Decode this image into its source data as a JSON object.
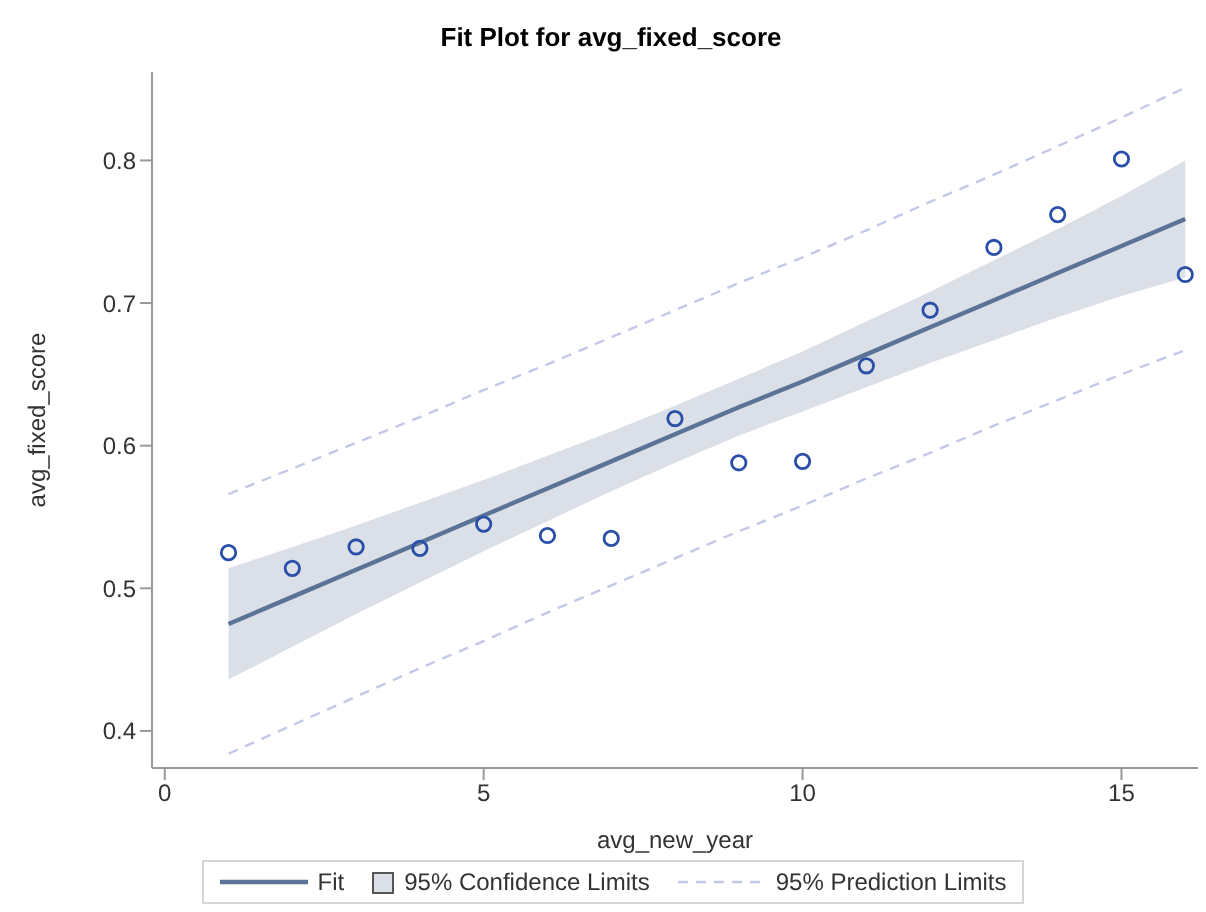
{
  "chart_data": {
    "type": "scatter",
    "title": "Fit Plot for avg_fixed_score",
    "xlabel": "avg_new_year",
    "ylabel": "avg_fixed_score",
    "annotations": [
      "95% Confidence Limits"
    ],
    "x": [
      1,
      2,
      3,
      4,
      5,
      6,
      7,
      8,
      9,
      10,
      11,
      12,
      13,
      14,
      15,
      16
    ],
    "series": [
      {
        "type": "line",
        "name": "Fit",
        "color": "#5b7397",
        "line_style": "solid",
        "values": [
          0.475,
          0.494,
          0.513,
          0.532,
          0.551,
          0.57,
          0.589,
          0.608,
          0.627,
          0.645,
          0.664,
          0.683,
          0.702,
          0.721,
          0.74,
          0.759
        ],
        "lower": [
          0.436,
          0.459,
          0.482,
          0.504,
          0.526,
          0.547,
          0.568,
          0.588,
          0.607,
          0.624,
          0.641,
          0.658,
          0.674,
          0.69,
          0.705,
          0.718
        ],
        "upper": [
          0.514,
          0.529,
          0.544,
          0.56,
          0.576,
          0.593,
          0.61,
          0.628,
          0.647,
          0.666,
          0.687,
          0.708,
          0.73,
          0.752,
          0.775,
          0.8
        ]
      },
      {
        "type": "line",
        "name": "95% Prediction Limits",
        "color": "#c3c8e8",
        "line_style": "dashed",
        "values": [
          0.566,
          0.584,
          0.602,
          0.62,
          0.639,
          0.657,
          0.676,
          0.695,
          0.714,
          0.732,
          0.751,
          0.771,
          0.79,
          0.81,
          0.83,
          0.851
        ]
      },
      {
        "type": "line",
        "color": "#c3c8e8",
        "line_style": "dashed",
        "values": [
          0.384,
          0.404,
          0.424,
          0.444,
          0.463,
          0.483,
          0.502,
          0.521,
          0.54,
          0.558,
          0.577,
          0.595,
          0.614,
          0.632,
          0.65,
          0.667
        ]
      },
      {
        "color": "#2a4fa8",
        "marker": "circle",
        "values": [
          0.525,
          0.514,
          0.529,
          0.528,
          0.545,
          0.537,
          0.535,
          0.619,
          0.588,
          0.589,
          0.656,
          0.695,
          0.739,
          0.762,
          0.801,
          0.72
        ]
      }
    ],
    "xlim": [
      -0.2,
      16.2
    ],
    "xticks": [
      0,
      5,
      10,
      15
    ],
    "ylim": [
      0.374,
      0.862
    ],
    "yticks": [
      0.4,
      0.5,
      0.6,
      0.7,
      0.8
    ],
    "legend": "bottom"
  }
}
